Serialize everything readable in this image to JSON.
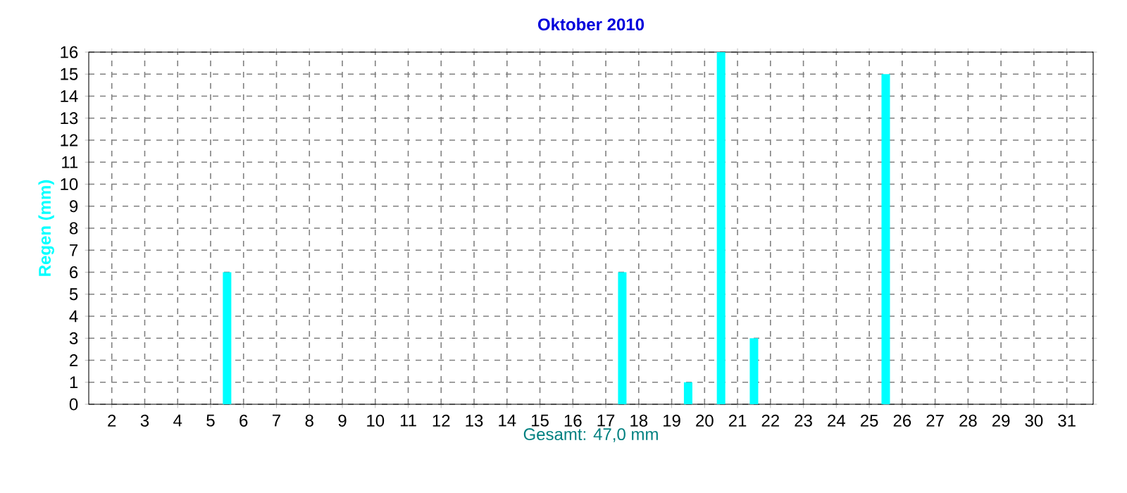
{
  "chart_data": {
    "type": "bar",
    "title": "Oktober 2010",
    "xlabel": "Gesamt: 47,0 mm",
    "ylabel": "Regen  (mm)",
    "x": [
      1.5,
      2.5,
      3.5,
      4.5,
      5.5,
      6.5,
      7.5,
      8.5,
      9.5,
      10.5,
      11.5,
      12.5,
      13.5,
      14.5,
      15.5,
      16.5,
      17.5,
      18.5,
      19.5,
      20.5,
      21.5,
      22.5,
      23.5,
      24.5,
      25.5,
      26.5,
      27.5,
      28.5,
      29.5,
      30.5,
      31.5
    ],
    "values": [
      0,
      0,
      0,
      0,
      6,
      0,
      0,
      0,
      0,
      0,
      0,
      0,
      0,
      0,
      0,
      0,
      6,
      0,
      1,
      16,
      3,
      0,
      0,
      0,
      15,
      0,
      0,
      0,
      0,
      0,
      0
    ],
    "color": "#00ffff",
    "xlim": [
      1.3,
      31.8
    ],
    "xticks": [
      2,
      3,
      4,
      5,
      6,
      7,
      8,
      9,
      10,
      11,
      12,
      13,
      14,
      15,
      16,
      17,
      18,
      19,
      20,
      21,
      22,
      23,
      24,
      25,
      26,
      27,
      28,
      29,
      30,
      31
    ],
    "ylim": [
      0,
      16
    ],
    "yticks": [
      0,
      1,
      2,
      3,
      4,
      5,
      6,
      7,
      8,
      9,
      10,
      11,
      12,
      13,
      14,
      15,
      16
    ],
    "grid": true
  }
}
